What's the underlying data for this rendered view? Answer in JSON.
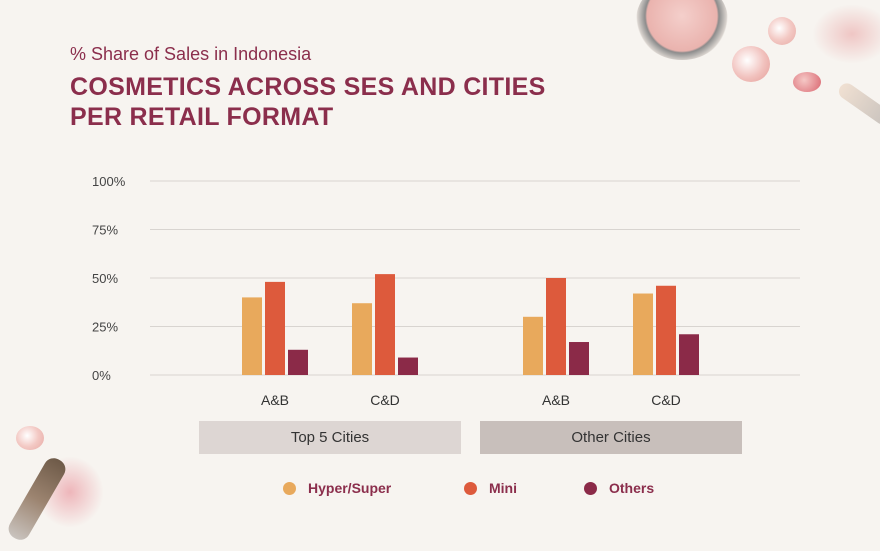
{
  "header": {
    "subtitle": "% Share of Sales in Indonesia",
    "title_line1": "COSMETICS ACROSS SES AND CITIES",
    "title_line2": "PER RETAIL FORMAT"
  },
  "colors": {
    "hyper_super": "#e8a95c",
    "mini": "#dd5a3c",
    "others": "#8b2a48",
    "grid": "#d8d4d0",
    "group_top5_bg": "#ddd6d3",
    "group_other_bg": "#c8bfbb"
  },
  "chart_data": {
    "type": "bar",
    "ylim": [
      0,
      100
    ],
    "yticks": [
      "0%",
      "25%",
      "50%",
      "75%",
      "100%"
    ],
    "groups": [
      {
        "label": "Top 5 Cities",
        "categories": [
          "A&B",
          "C&D"
        ]
      },
      {
        "label": "Other Cities",
        "categories": [
          "A&B",
          "C&D"
        ]
      }
    ],
    "categories": [
      "A&B",
      "C&D",
      "A&B",
      "C&D"
    ],
    "series": [
      {
        "name": "Hyper/Super",
        "values": [
          40,
          37,
          30,
          42
        ]
      },
      {
        "name": "Mini",
        "values": [
          48,
          52,
          50,
          46
        ]
      },
      {
        "name": "Others",
        "values": [
          13,
          9,
          17,
          21
        ]
      }
    ],
    "legend_position": "bottom"
  }
}
